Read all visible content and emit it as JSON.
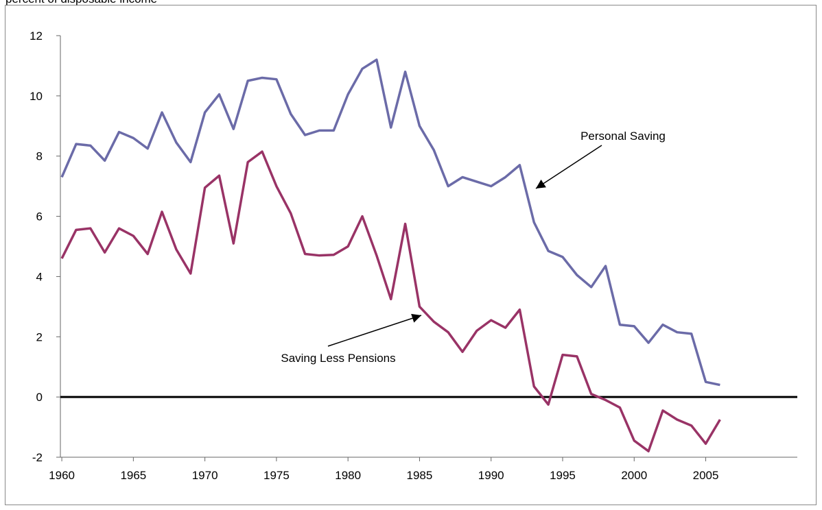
{
  "chart_data": {
    "type": "line",
    "subtitle": "percent of disposable income",
    "x": [
      1960,
      1961,
      1962,
      1963,
      1964,
      1965,
      1966,
      1967,
      1968,
      1969,
      1970,
      1971,
      1972,
      1973,
      1974,
      1975,
      1976,
      1977,
      1978,
      1979,
      1980,
      1981,
      1982,
      1983,
      1984,
      1985,
      1986,
      1987,
      1988,
      1989,
      1990,
      1991,
      1992,
      1993,
      1994,
      1995,
      1996,
      1997,
      1998,
      1999,
      2000,
      2001,
      2002,
      2003,
      2004,
      2005,
      2006
    ],
    "series": [
      {
        "name": "Personal Saving",
        "color": "#6b6ba8",
        "values": [
          7.3,
          8.4,
          8.35,
          7.85,
          8.8,
          8.6,
          8.25,
          9.45,
          8.45,
          7.8,
          9.45,
          10.05,
          8.9,
          10.5,
          10.6,
          10.55,
          9.4,
          8.7,
          8.85,
          8.85,
          10.05,
          10.9,
          11.2,
          8.95,
          10.8,
          9.0,
          8.2,
          7.0,
          7.3,
          7.15,
          7.0,
          7.3,
          7.7,
          5.8,
          4.85,
          4.65,
          4.05,
          3.65,
          4.35,
          2.4,
          2.35,
          1.8,
          2.4,
          2.15,
          2.1,
          0.5,
          0.4
        ]
      },
      {
        "name": "Saving Less Pensions",
        "color": "#993366",
        "values": [
          4.6,
          5.55,
          5.6,
          4.8,
          5.6,
          5.35,
          4.75,
          6.15,
          4.9,
          4.1,
          6.95,
          7.35,
          5.1,
          7.8,
          8.15,
          7.0,
          6.1,
          4.75,
          4.7,
          4.72,
          5.0,
          6.0,
          4.7,
          3.25,
          5.75,
          3.0,
          2.5,
          2.15,
          1.5,
          2.2,
          2.55,
          2.3,
          2.9,
          0.35,
          -0.25,
          1.4,
          1.35,
          0.1,
          -0.1,
          -0.35,
          -1.45,
          -1.8,
          -0.45,
          -0.75,
          -0.95,
          -1.55,
          -0.75
        ]
      }
    ],
    "annotations": [
      "Personal Saving",
      "Saving Less Pensions"
    ],
    "xlim": [
      1959.9,
      2011.4
    ],
    "xticks": [
      1960,
      1965,
      1970,
      1975,
      1980,
      1985,
      1990,
      1995,
      2000,
      2005
    ],
    "ylim": [
      -2,
      12
    ],
    "yticks": [
      -2,
      0,
      2,
      4,
      6,
      8,
      10,
      12
    ],
    "grid": false
  }
}
